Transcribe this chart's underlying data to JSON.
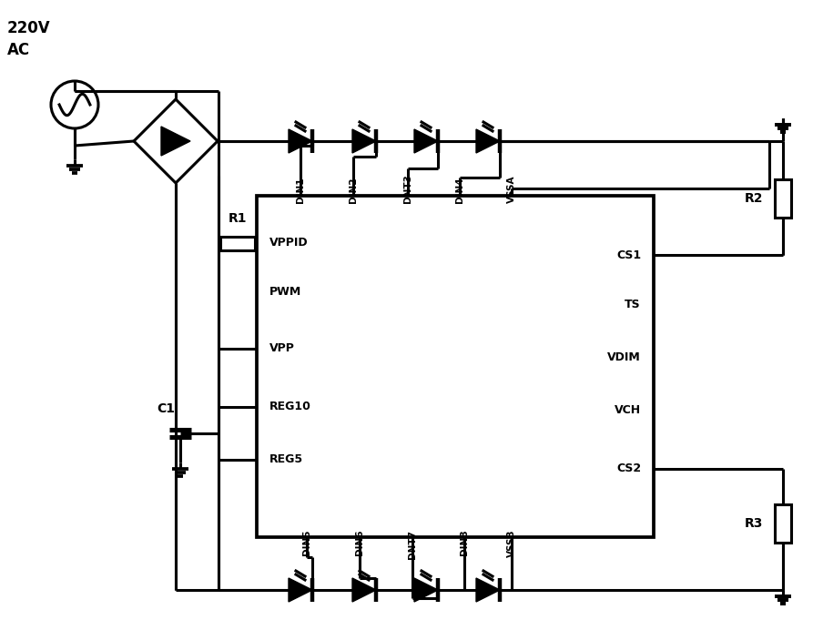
{
  "bg_color": "#ffffff",
  "lw": 2.2,
  "ac_labels": [
    "220V",
    "AC"
  ],
  "r1_label": "R1",
  "c1_label": "C1",
  "r2_label": "R2",
  "r3_label": "R3",
  "ic_pins_left": [
    "VPPID",
    "PWM",
    "VPP",
    "REG10",
    "REG5"
  ],
  "ic_pins_right": [
    "CS1",
    "TS",
    "VDIM",
    "VCH",
    "CS2"
  ],
  "ic_pins_top": [
    "DIN1",
    "DIN2",
    "DNT3",
    "DIN4",
    "VSSA"
  ],
  "ic_pins_bottom": [
    "DIN5",
    "DIN6",
    "DNT7",
    "DIN8",
    "VSSB"
  ]
}
